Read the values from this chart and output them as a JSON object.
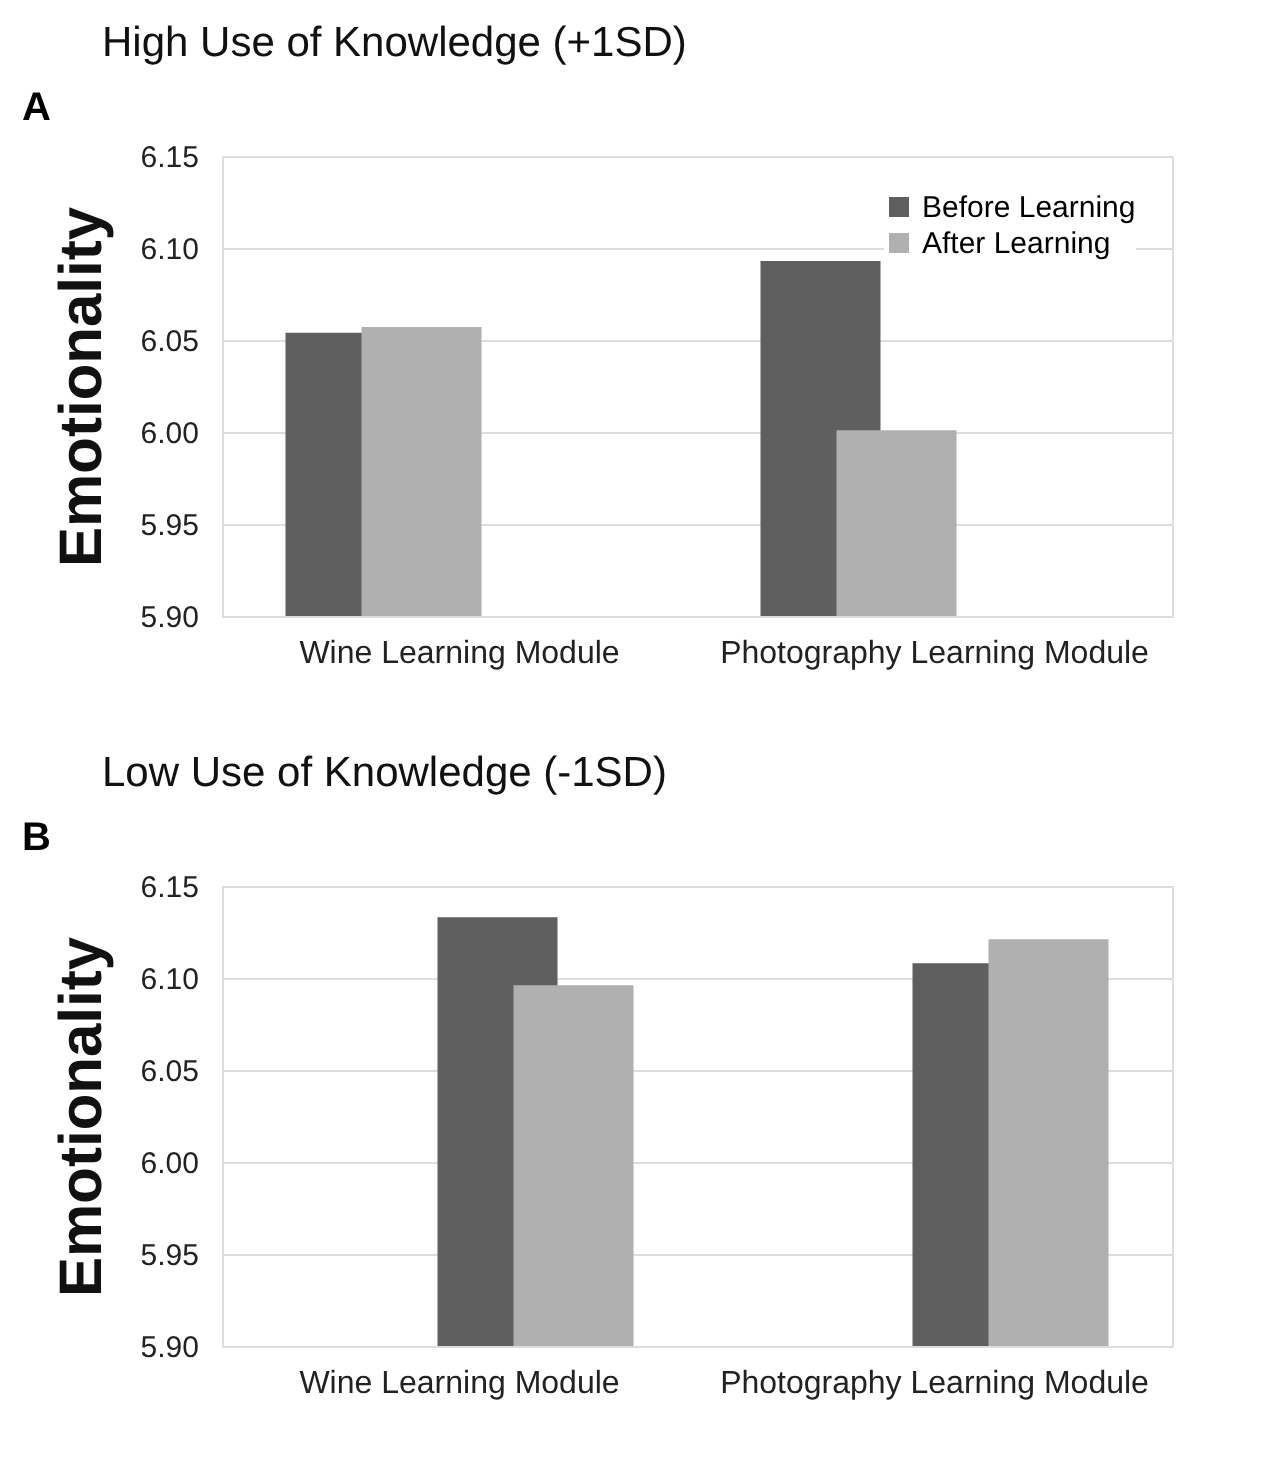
{
  "chart_data": [
    {
      "type": "bar",
      "title": "High Use of Knowledge (+1SD)",
      "ylabel": "Emotionality",
      "annotations": [
        "A"
      ],
      "categories": [
        "Wine Learning Module",
        "Photography Learning Module"
      ],
      "series": [
        {
          "name": "Before Learning",
          "color": "#5f5f5f",
          "values": [
            6.054,
            6.093
          ]
        },
        {
          "name": "After Learning",
          "color": "#b0b0b0",
          "values": [
            6.057,
            6.001
          ]
        }
      ],
      "ylim": [
        5.9,
        6.15
      ],
      "yticks": [
        {
          "value": 5.9,
          "label": "5.90"
        },
        5.95,
        {
          "value": 6.0,
          "label": "6.00"
        },
        6.05,
        {
          "value": 6.1,
          "label": "6.10"
        },
        6.15
      ],
      "grid": "y",
      "legend": "top right"
    },
    {
      "type": "bar",
      "title": "Low Use of Knowledge (-1SD)",
      "ylabel": "Emotionality",
      "annotations": [
        "B"
      ],
      "categories": [
        "Wine Learning Module",
        "Photography Learning Module"
      ],
      "series": [
        {
          "color": "#5f5f5f",
          "values": [
            6.133,
            6.108
          ]
        },
        {
          "color": "#b0b0b0",
          "values": [
            6.096,
            6.121
          ]
        }
      ],
      "ylim": [
        5.9,
        6.15
      ],
      "yticks": [
        {
          "value": 5.9,
          "label": "5.90"
        },
        5.95,
        {
          "value": 6.0,
          "label": "6.00"
        },
        6.05,
        {
          "value": 6.1,
          "label": "6.10"
        },
        6.15
      ],
      "grid": "y",
      "legend": false
    }
  ]
}
